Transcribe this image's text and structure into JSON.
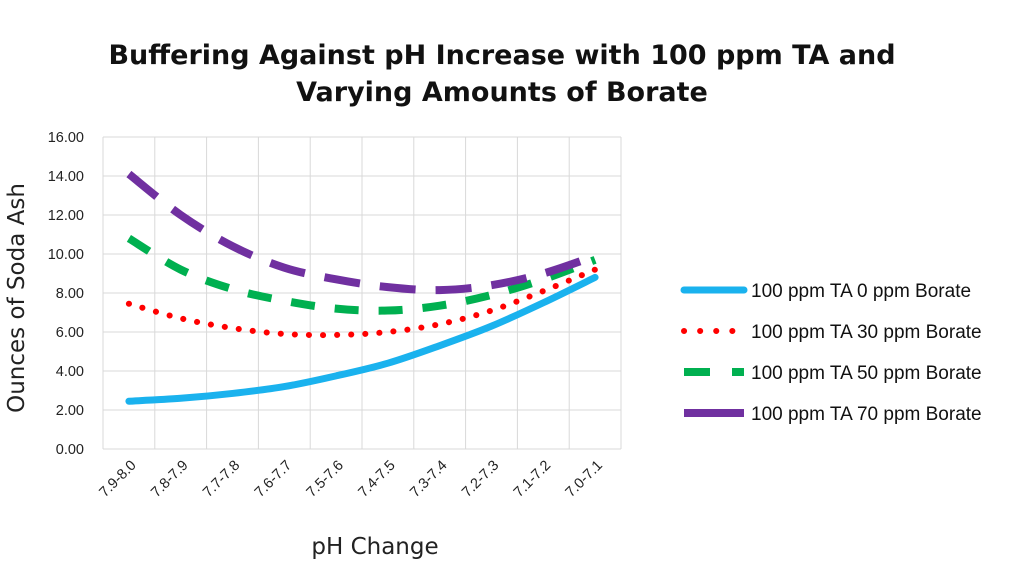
{
  "chart_data": {
    "type": "line",
    "title_lines": [
      "Buffering Against pH Increase with 100 ppm TA and",
      "Varying Amounts of Borate"
    ],
    "xlabel": "pH Change",
    "ylabel": "Ounces of Soda Ash",
    "categories": [
      "7.9-8.0",
      "7.8-7.9",
      "7.7-7.8",
      "7.6-7.7",
      "7.5-7.6",
      "7.4-7.5",
      "7.3-7.4",
      "7.2-7.3",
      "7.1-7.2",
      "7.0-7.1"
    ],
    "ylim": [
      0,
      16
    ],
    "yticks": [
      "0.00",
      "2.00",
      "4.00",
      "6.00",
      "8.00",
      "10.00",
      "12.00",
      "14.00",
      "16.00"
    ],
    "grid": true,
    "legend_position": "right",
    "series": [
      {
        "name": "100 ppm TA 0 ppm Borate",
        "color": "#1AB2EE",
        "dash": "solid",
        "values": [
          2.45,
          2.6,
          2.85,
          3.2,
          3.75,
          4.4,
          5.3,
          6.3,
          7.5,
          8.8
        ]
      },
      {
        "name": "100 ppm TA 30 ppm Borate",
        "color": "#FF0000",
        "dash": "dotted",
        "values": [
          7.45,
          6.7,
          6.2,
          5.9,
          5.85,
          6.0,
          6.4,
          7.1,
          8.1,
          9.2
        ]
      },
      {
        "name": "100 ppm TA 50 ppm Borate",
        "color": "#00B050",
        "dash": "dashed",
        "values": [
          10.8,
          9.2,
          8.2,
          7.6,
          7.2,
          7.1,
          7.35,
          7.9,
          8.7,
          9.7
        ]
      },
      {
        "name": "100 ppm TA 70 ppm Borate",
        "color": "#7030A0",
        "dash": "long-dash",
        "values": [
          14.1,
          12.0,
          10.4,
          9.3,
          8.7,
          8.3,
          8.15,
          8.4,
          9.0,
          9.9
        ]
      }
    ]
  }
}
